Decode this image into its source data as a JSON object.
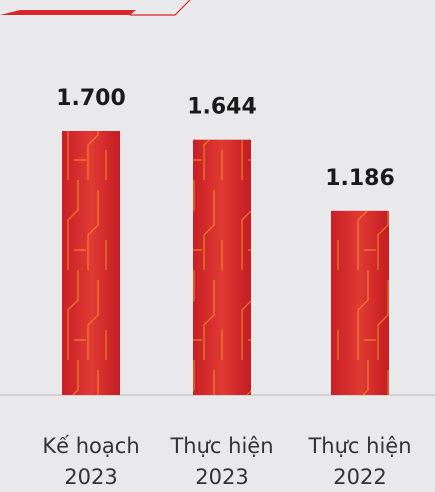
{
  "chart_data": {
    "type": "bar",
    "categories": [
      "Kế hoạch 2023",
      "Thực hiện 2023",
      "Thực hiện 2022"
    ],
    "values": [
      1700,
      1644,
      1186
    ],
    "value_labels": [
      "1.700",
      "1.644",
      "1.186"
    ],
    "color": "#d9262a"
  }
}
